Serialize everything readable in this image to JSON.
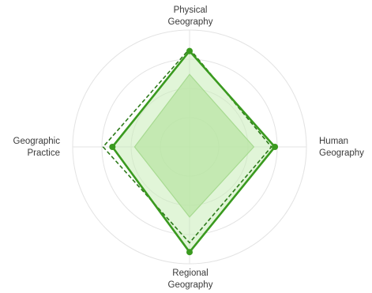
{
  "chart_data": {
    "type": "radar",
    "axes": [
      {
        "lines": [
          "Physical",
          "Geography"
        ]
      },
      {
        "lines": [
          "Human",
          "Geography"
        ]
      },
      {
        "lines": [
          "Regional",
          "Geography"
        ]
      },
      {
        "lines": [
          "Geographic",
          "Practice"
        ]
      }
    ],
    "range": [
      0,
      1
    ],
    "rings": [
      0.25,
      0.5,
      0.75,
      1.0
    ],
    "series": [
      {
        "style": "filled-inner",
        "values": [
          0.62,
          0.55,
          0.6,
          0.47
        ],
        "stroke": "#7fc463",
        "fill": "#a8db8e"
      },
      {
        "style": "filled-outer-solid",
        "values": [
          0.82,
          0.73,
          0.9,
          0.66
        ],
        "stroke": "#3a9a1f",
        "fill": "#c8ecb8",
        "markers": true
      },
      {
        "style": "dashed",
        "values": [
          0.84,
          0.7,
          0.82,
          0.74
        ],
        "stroke": "#2d7a1a"
      }
    ],
    "grid": true,
    "legend": "none"
  }
}
